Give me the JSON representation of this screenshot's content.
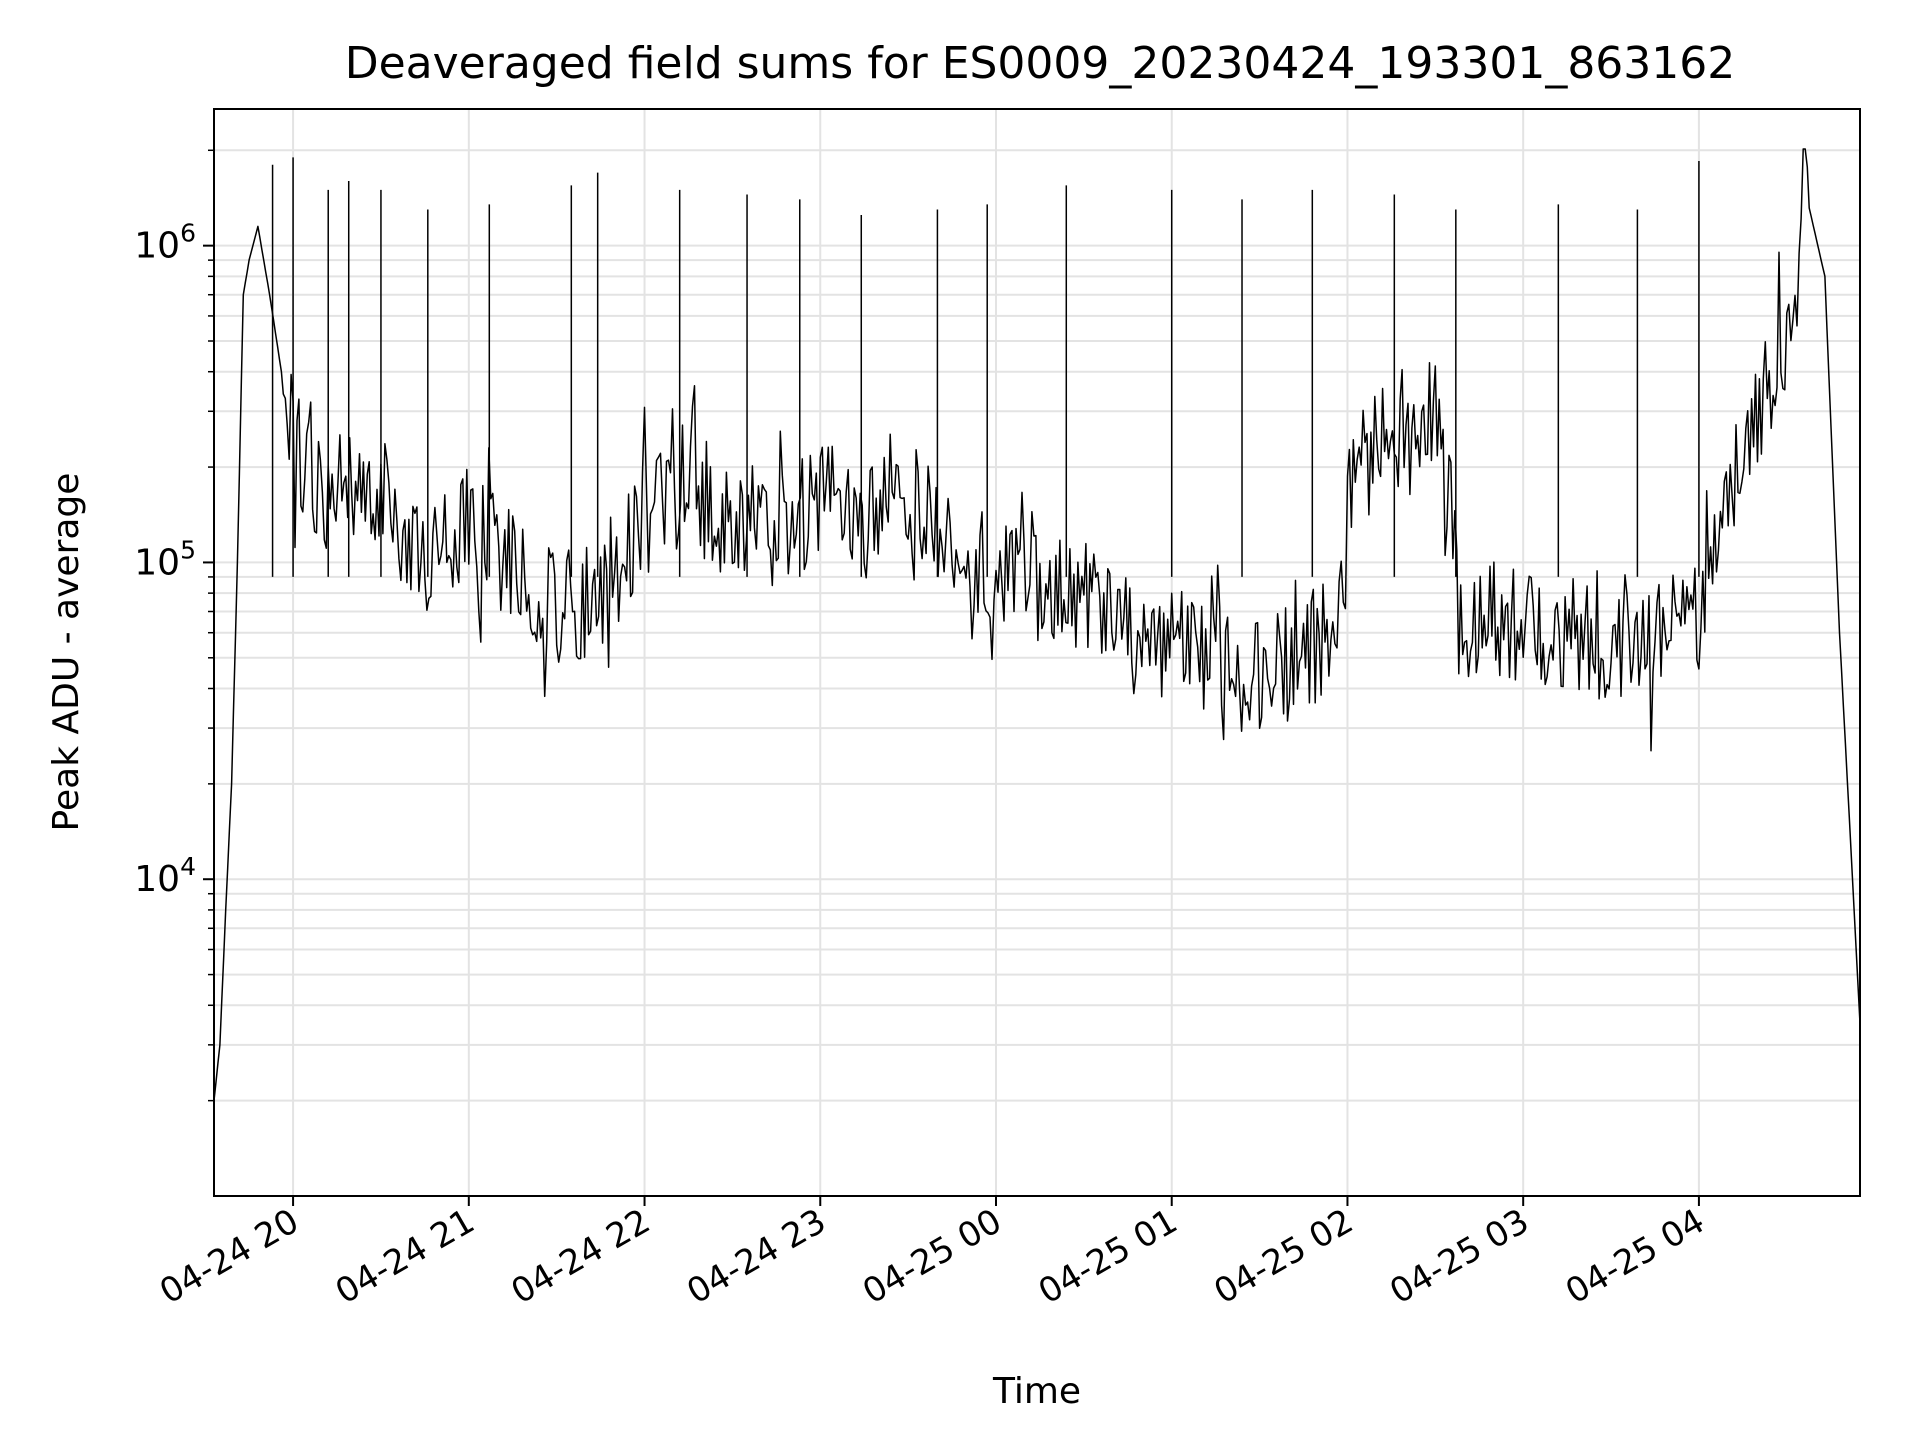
{
  "chart_data": {
    "type": "line",
    "title": "Deaveraged field sums for ES0009_20230424_193301_863162",
    "xlabel": "Time",
    "ylabel": "Peak ADU - average",
    "yscale": "log",
    "grid": true,
    "xlim": [
      "2023-04-24 19:33",
      "2023-04-25 04:55"
    ],
    "ylim": [
      1000,
      2700000
    ],
    "x_tick_labels": [
      "04-24 20",
      "04-24 21",
      "04-24 22",
      "04-24 23",
      "04-25 00",
      "04-25 01",
      "04-25 02",
      "04-25 03",
      "04-25 04"
    ],
    "x_ticks": [
      "2023-04-24 20:00",
      "2023-04-24 21:00",
      "2023-04-24 22:00",
      "2023-04-24 23:00",
      "2023-04-25 00:00",
      "2023-04-25 01:00",
      "2023-04-25 02:00",
      "2023-04-25 03:00",
      "2023-04-25 04:00"
    ],
    "y_ticks": [
      {
        "value": 10000,
        "base": "10",
        "exp": "4"
      },
      {
        "value": 100000,
        "base": "10",
        "exp": "5"
      },
      {
        "value": 1000000,
        "base": "10",
        "exp": "6"
      }
    ],
    "line_color": "#000000",
    "series": [
      {
        "x": [
          "2023-04-24 19:33",
          "2023-04-24 19:35",
          "2023-04-24 19:37",
          "2023-04-24 19:39",
          "2023-04-24 19:41",
          "2023-04-24 19:43",
          "2023-04-24 19:45",
          "2023-04-24 19:48",
          "2023-04-24 19:52",
          "2023-04-24 19:56",
          "2023-04-24 20:00",
          "2023-04-24 20:10",
          "2023-04-24 20:20",
          "2023-04-24 20:30",
          "2023-04-24 20:45",
          "2023-04-24 21:00",
          "2023-04-24 21:15",
          "2023-04-24 21:30",
          "2023-04-24 21:45",
          "2023-04-24 22:00",
          "2023-04-24 22:15",
          "2023-04-24 22:30",
          "2023-04-24 22:45",
          "2023-04-24 23:00",
          "2023-04-24 23:15",
          "2023-04-24 23:30",
          "2023-04-24 23:45",
          "2023-04-25 00:00",
          "2023-04-25 00:15",
          "2023-04-25 00:30",
          "2023-04-25 00:45",
          "2023-04-25 01:00",
          "2023-04-25 01:15",
          "2023-04-25 01:30",
          "2023-04-25 01:45",
          "2023-04-25 01:55",
          "2023-04-25 02:00",
          "2023-04-25 02:10",
          "2023-04-25 02:20",
          "2023-04-25 02:30",
          "2023-04-25 02:40",
          "2023-04-25 02:50",
          "2023-04-25 03:00",
          "2023-04-25 03:15",
          "2023-04-25 03:30",
          "2023-04-25 03:45",
          "2023-04-25 04:00",
          "2023-04-25 04:10",
          "2023-04-25 04:20",
          "2023-04-25 04:30",
          "2023-04-25 04:37",
          "2023-04-25 04:43",
          "2023-04-25 04:48",
          "2023-04-25 04:52",
          "2023-04-25 04:55"
        ],
        "y": [
          2000,
          3000,
          8000,
          20000,
          100000,
          700000,
          900000,
          1150000,
          700000,
          400000,
          250000,
          150000,
          180000,
          160000,
          100000,
          130000,
          100000,
          70000,
          75000,
          150000,
          170000,
          140000,
          120000,
          160000,
          130000,
          150000,
          100000,
          100000,
          80000,
          75000,
          60000,
          55000,
          50000,
          45000,
          50000,
          60000,
          150000,
          250000,
          200000,
          300000,
          70000,
          65000,
          60000,
          60000,
          55000,
          55000,
          70000,
          150000,
          300000,
          500000,
          1400000,
          800000,
          60000,
          12000,
          3500
        ]
      }
    ],
    "spikes": [
      {
        "x": "2023-04-24 19:53",
        "y": 1800000
      },
      {
        "x": "2023-04-24 20:00",
        "y": 1900000
      },
      {
        "x": "2023-04-24 20:12",
        "y": 1500000
      },
      {
        "x": "2023-04-24 20:19",
        "y": 1600000
      },
      {
        "x": "2023-04-24 20:30",
        "y": 1500000
      },
      {
        "x": "2023-04-24 20:46",
        "y": 1300000
      },
      {
        "x": "2023-04-24 21:07",
        "y": 1350000
      },
      {
        "x": "2023-04-24 21:35",
        "y": 1550000
      },
      {
        "x": "2023-04-24 21:44",
        "y": 1700000
      },
      {
        "x": "2023-04-24 22:12",
        "y": 1500000
      },
      {
        "x": "2023-04-24 22:35",
        "y": 1450000
      },
      {
        "x": "2023-04-24 22:53",
        "y": 1400000
      },
      {
        "x": "2023-04-24 23:14",
        "y": 1250000
      },
      {
        "x": "2023-04-24 23:40",
        "y": 1300000
      },
      {
        "x": "2023-04-24 23:57",
        "y": 1350000
      },
      {
        "x": "2023-04-25 00:24",
        "y": 1550000
      },
      {
        "x": "2023-04-25 01:00",
        "y": 1500000
      },
      {
        "x": "2023-04-25 01:24",
        "y": 1400000
      },
      {
        "x": "2023-04-25 01:48",
        "y": 1500000
      },
      {
        "x": "2023-04-25 02:16",
        "y": 1450000
      },
      {
        "x": "2023-04-25 02:37",
        "y": 1300000
      },
      {
        "x": "2023-04-25 03:12",
        "y": 1350000
      },
      {
        "x": "2023-04-25 03:39",
        "y": 1300000
      },
      {
        "x": "2023-04-25 04:00",
        "y": 1850000
      }
    ]
  }
}
